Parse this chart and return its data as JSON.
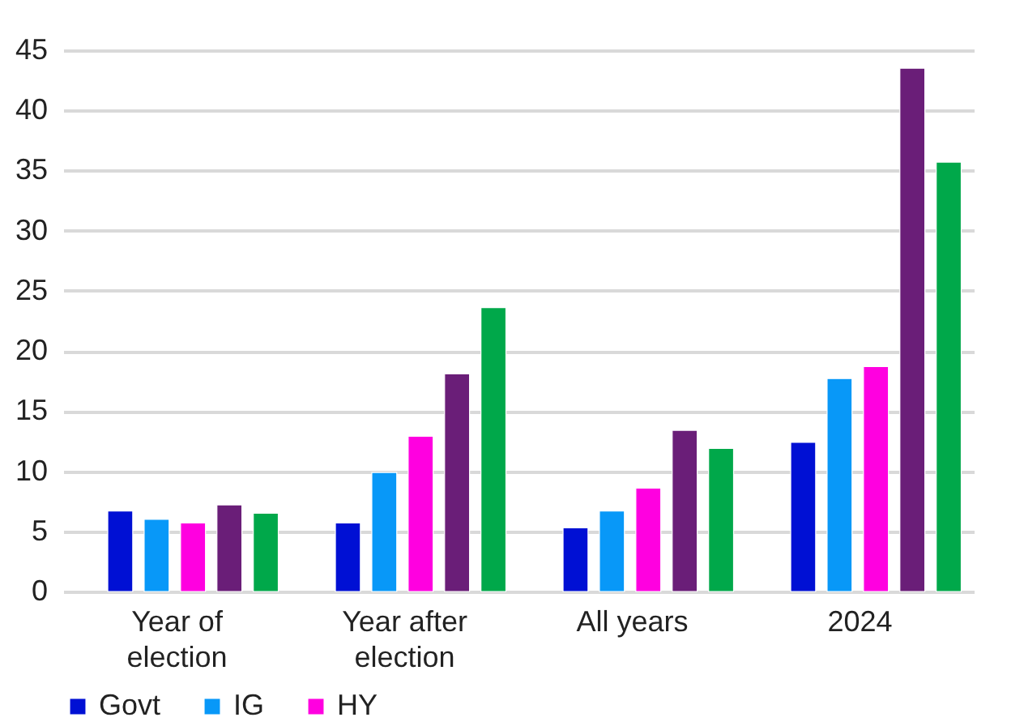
{
  "chart_data": {
    "type": "bar",
    "categories": [
      "Year of election",
      "Year after election",
      "All years",
      "2024"
    ],
    "series": [
      {
        "name": "Govt",
        "color": "#0010d4",
        "values": [
          6.7,
          5.7,
          5.3,
          12.4
        ]
      },
      {
        "name": "IG",
        "color": "#0898f8",
        "values": [
          6.0,
          9.9,
          6.7,
          17.7
        ]
      },
      {
        "name": "HY",
        "color": "#ff00e0",
        "values": [
          5.7,
          12.9,
          8.6,
          18.7
        ]
      },
      {
        "color": "#6a1e78",
        "values": [
          7.2,
          18.1,
          13.4,
          43.5
        ]
      },
      {
        "color": "#00a84a",
        "values": [
          6.5,
          23.6,
          11.9,
          35.7
        ]
      }
    ],
    "ylim": [
      0,
      45
    ],
    "yticks": [
      0,
      5,
      10,
      15,
      20,
      25,
      30,
      35,
      40,
      45
    ],
    "grid": "y",
    "legend": "bottom"
  }
}
